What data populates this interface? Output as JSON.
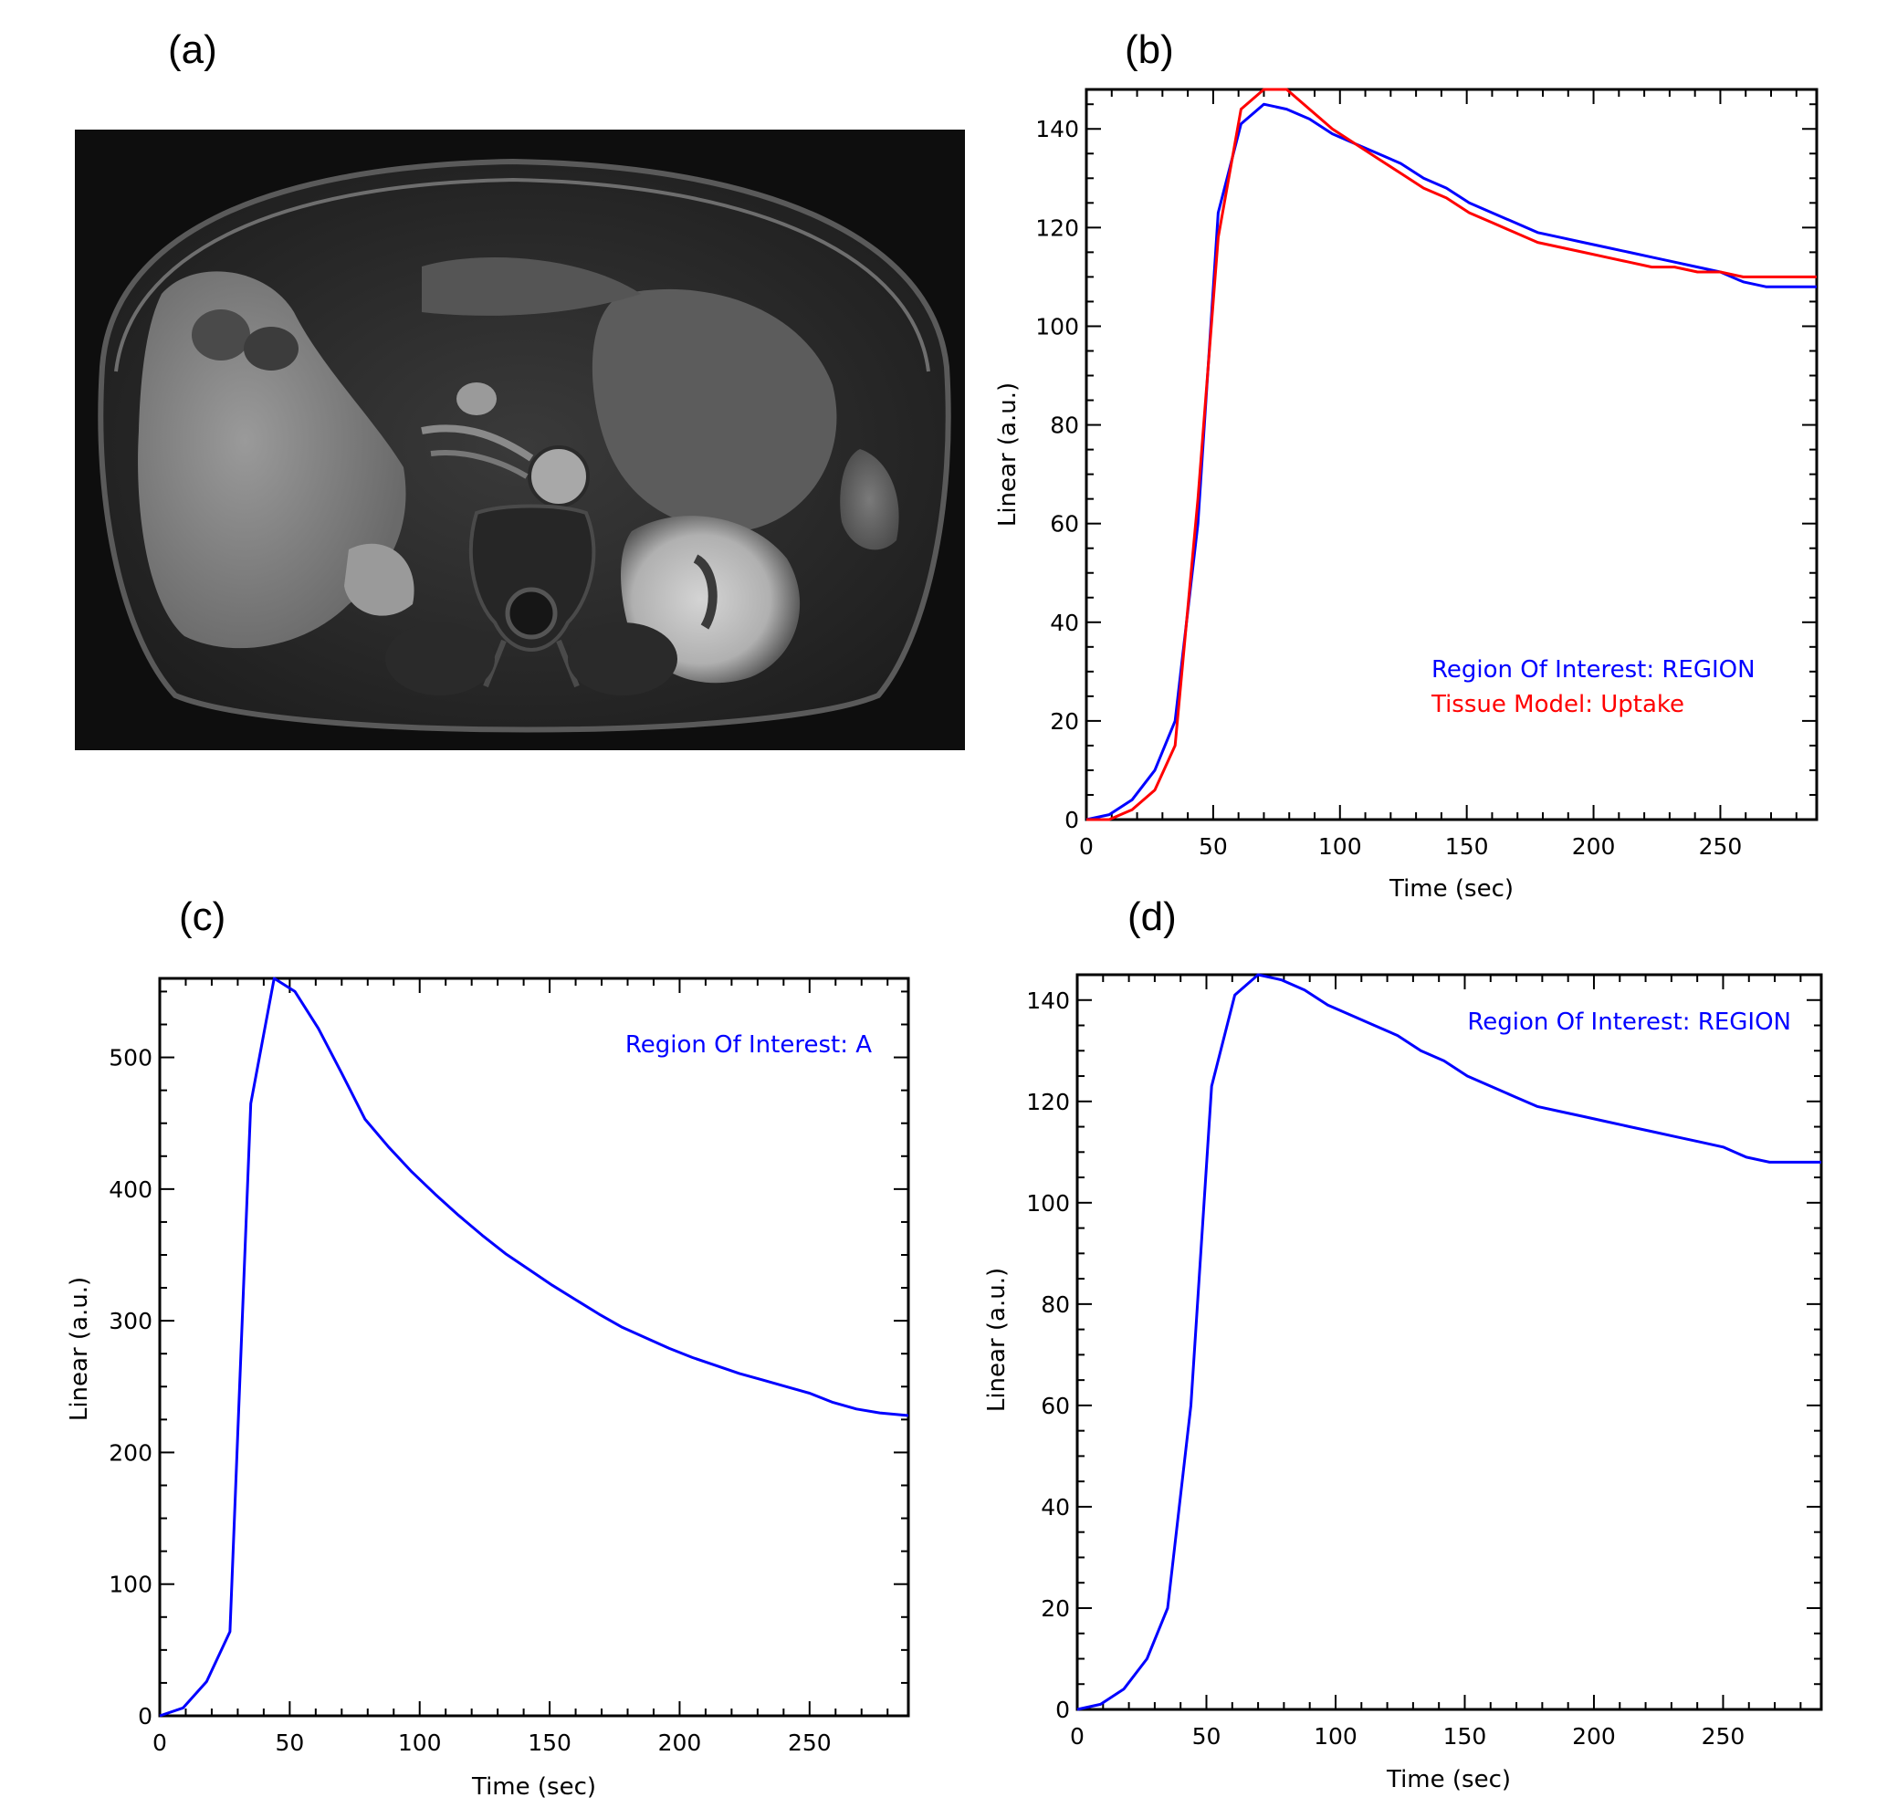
{
  "figure": {
    "panel_labels": [
      "(a)",
      "(b)",
      "(c)",
      "(d)"
    ],
    "image_a": {
      "kind": "axial abdominal MRI (grayscale)"
    }
  },
  "chart_data": [
    {
      "panel": "(b)",
      "type": "line",
      "xlabel": "Time (sec)",
      "ylabel": "Linear (a.u.)",
      "xlim": [
        0,
        288
      ],
      "ylim": [
        0,
        148
      ],
      "xticks": [
        0,
        50,
        100,
        150,
        200,
        250
      ],
      "yticks": [
        0,
        20,
        40,
        60,
        80,
        100,
        120,
        140
      ],
      "legend_position": "lower-right",
      "series": [
        {
          "name": "Region Of Interest: REGION",
          "color": "#0000ff",
          "x": [
            0,
            9,
            18,
            27,
            35,
            44,
            52,
            61,
            70,
            79,
            88,
            97,
            106,
            115,
            124,
            133,
            142,
            151,
            160,
            169,
            178,
            187,
            196,
            205,
            214,
            223,
            232,
            241,
            250,
            259,
            268,
            277,
            288
          ],
          "y": [
            0,
            1,
            4,
            10,
            20,
            60,
            123,
            141,
            145,
            144,
            142,
            139,
            137,
            135,
            133,
            130,
            128,
            125,
            123,
            121,
            119,
            118,
            117,
            116,
            115,
            114,
            113,
            112,
            111,
            109,
            108,
            108,
            108
          ]
        },
        {
          "name": "Tissue Model: Uptake",
          "color": "#ff0000",
          "x": [
            0,
            9,
            18,
            27,
            35,
            44,
            52,
            61,
            70,
            79,
            88,
            97,
            106,
            115,
            124,
            133,
            142,
            151,
            160,
            169,
            178,
            187,
            196,
            205,
            214,
            223,
            232,
            241,
            250,
            259,
            268,
            277,
            288
          ],
          "y": [
            0,
            0,
            2,
            6,
            15,
            65,
            118,
            144,
            148,
            148,
            144,
            140,
            137,
            134,
            131,
            128,
            126,
            123,
            121,
            119,
            117,
            116,
            115,
            114,
            113,
            112,
            112,
            111,
            111,
            110,
            110,
            110,
            110
          ]
        }
      ]
    },
    {
      "panel": "(c)",
      "type": "line",
      "xlabel": "Time (sec)",
      "ylabel": "Linear (a.u.)",
      "xlim": [
        0,
        288
      ],
      "ylim": [
        0,
        560
      ],
      "xticks": [
        0,
        50,
        100,
        150,
        200,
        250
      ],
      "yticks": [
        0,
        100,
        200,
        300,
        400,
        500
      ],
      "legend_position": "top-right",
      "series": [
        {
          "name": "Region Of Interest: A",
          "color": "#0000ff",
          "x": [
            0,
            9,
            18,
            27,
            35,
            44,
            52,
            61,
            70,
            79,
            88,
            97,
            106,
            115,
            124,
            133,
            142,
            151,
            160,
            169,
            178,
            187,
            196,
            205,
            214,
            223,
            232,
            241,
            250,
            259,
            268,
            277,
            288
          ],
          "y": [
            0,
            6,
            26,
            64,
            465,
            560,
            550,
            522,
            488,
            453,
            432,
            413,
            396,
            380,
            365,
            351,
            339,
            327,
            316,
            305,
            295,
            287,
            279,
            272,
            266,
            260,
            255,
            250,
            245,
            238,
            233,
            230,
            228
          ]
        }
      ]
    },
    {
      "panel": "(d)",
      "type": "line",
      "xlabel": "Time (sec)",
      "ylabel": "Linear (a.u.)",
      "xlim": [
        0,
        288
      ],
      "ylim": [
        0,
        145
      ],
      "xticks": [
        0,
        50,
        100,
        150,
        200,
        250
      ],
      "yticks": [
        0,
        20,
        40,
        60,
        80,
        100,
        120,
        140
      ],
      "legend_position": "top-right",
      "series": [
        {
          "name": "Region Of Interest: REGION",
          "color": "#0000ff",
          "x": [
            0,
            9,
            18,
            27,
            35,
            44,
            52,
            61,
            70,
            79,
            88,
            97,
            106,
            115,
            124,
            133,
            142,
            151,
            160,
            169,
            178,
            187,
            196,
            205,
            214,
            223,
            232,
            241,
            250,
            259,
            268,
            277,
            288
          ],
          "y": [
            0,
            1,
            4,
            10,
            20,
            60,
            123,
            141,
            145,
            144,
            142,
            139,
            137,
            135,
            133,
            130,
            128,
            125,
            123,
            121,
            119,
            118,
            117,
            116,
            115,
            114,
            113,
            112,
            111,
            109,
            108,
            108,
            108
          ]
        }
      ]
    }
  ]
}
